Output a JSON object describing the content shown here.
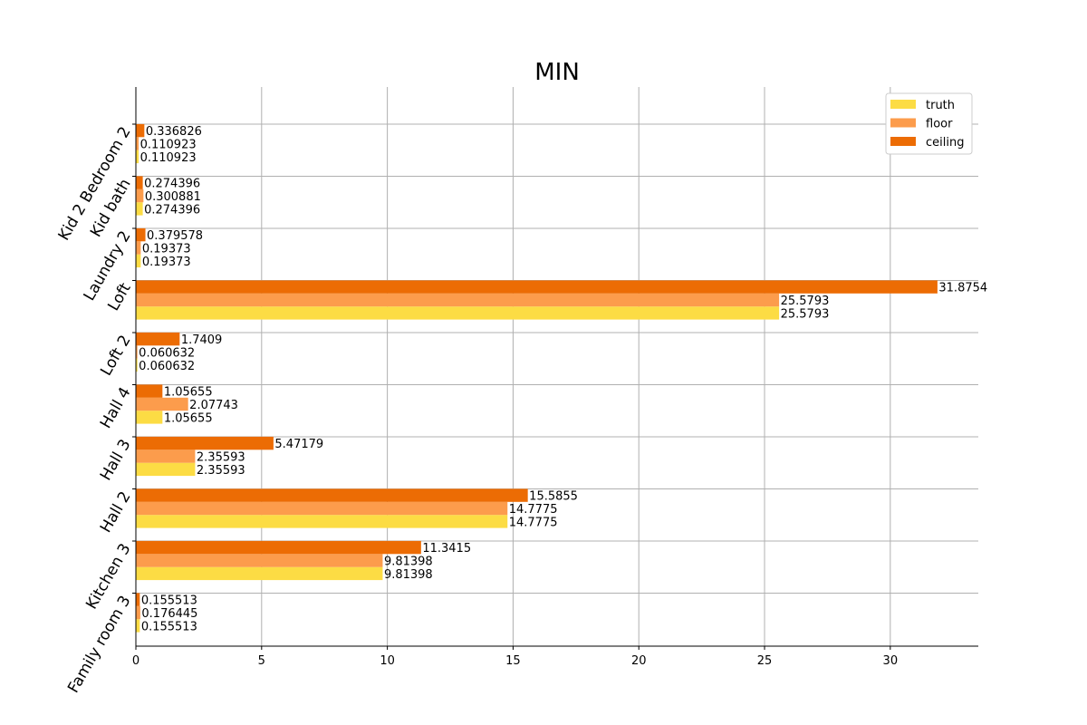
{
  "chart_data": {
    "type": "bar",
    "orientation": "horizontal",
    "title": "MIN",
    "xlabel": "",
    "ylabel": "",
    "xlim": [
      0,
      33.5
    ],
    "xticks": [
      0,
      5,
      10,
      15,
      20,
      25,
      30
    ],
    "grid": true,
    "legend_position": "top-right",
    "categories": [
      "Family room 3",
      "Kitchen 3",
      "Hall 2",
      "Hall 3",
      "Hall 4",
      "Loft 2",
      "Loft",
      "Laundry 2",
      "Kid bath",
      "Kid 2 Bedroom 2"
    ],
    "series": [
      {
        "name": "truth",
        "color": "#fcdc44",
        "values": [
          0.155513,
          9.81398,
          14.7775,
          2.35593,
          1.05655,
          0.060632,
          25.5793,
          0.19373,
          0.274396,
          0.110923
        ],
        "labels": [
          "0.155513",
          "9.81398",
          "14.7775",
          "2.35593",
          "1.05655",
          "0.060632",
          "25.5793",
          "0.19373",
          "0.274396",
          "0.110923"
        ]
      },
      {
        "name": "floor",
        "color": "#fc9c4c",
        "values": [
          0.176445,
          9.81398,
          14.7775,
          2.35593,
          2.07743,
          0.060632,
          25.5793,
          0.19373,
          0.300881,
          0.110923
        ],
        "labels": [
          "0.176445",
          "9.81398",
          "14.7775",
          "2.35593",
          "2.07743",
          "0.060632",
          "25.5793",
          "0.19373",
          "0.300881",
          "0.110923"
        ]
      },
      {
        "name": "ceiling",
        "color": "#ec6c04",
        "values": [
          0.155513,
          11.3415,
          15.5855,
          5.47179,
          1.05655,
          1.7409,
          31.8754,
          0.379578,
          0.274396,
          0.336826
        ],
        "labels": [
          "0.155513",
          "11.3415",
          "15.5855",
          "5.47179",
          "1.05655",
          "1.7409",
          "31.8754",
          "0.379578",
          "0.274396",
          "0.336826"
        ]
      }
    ]
  }
}
